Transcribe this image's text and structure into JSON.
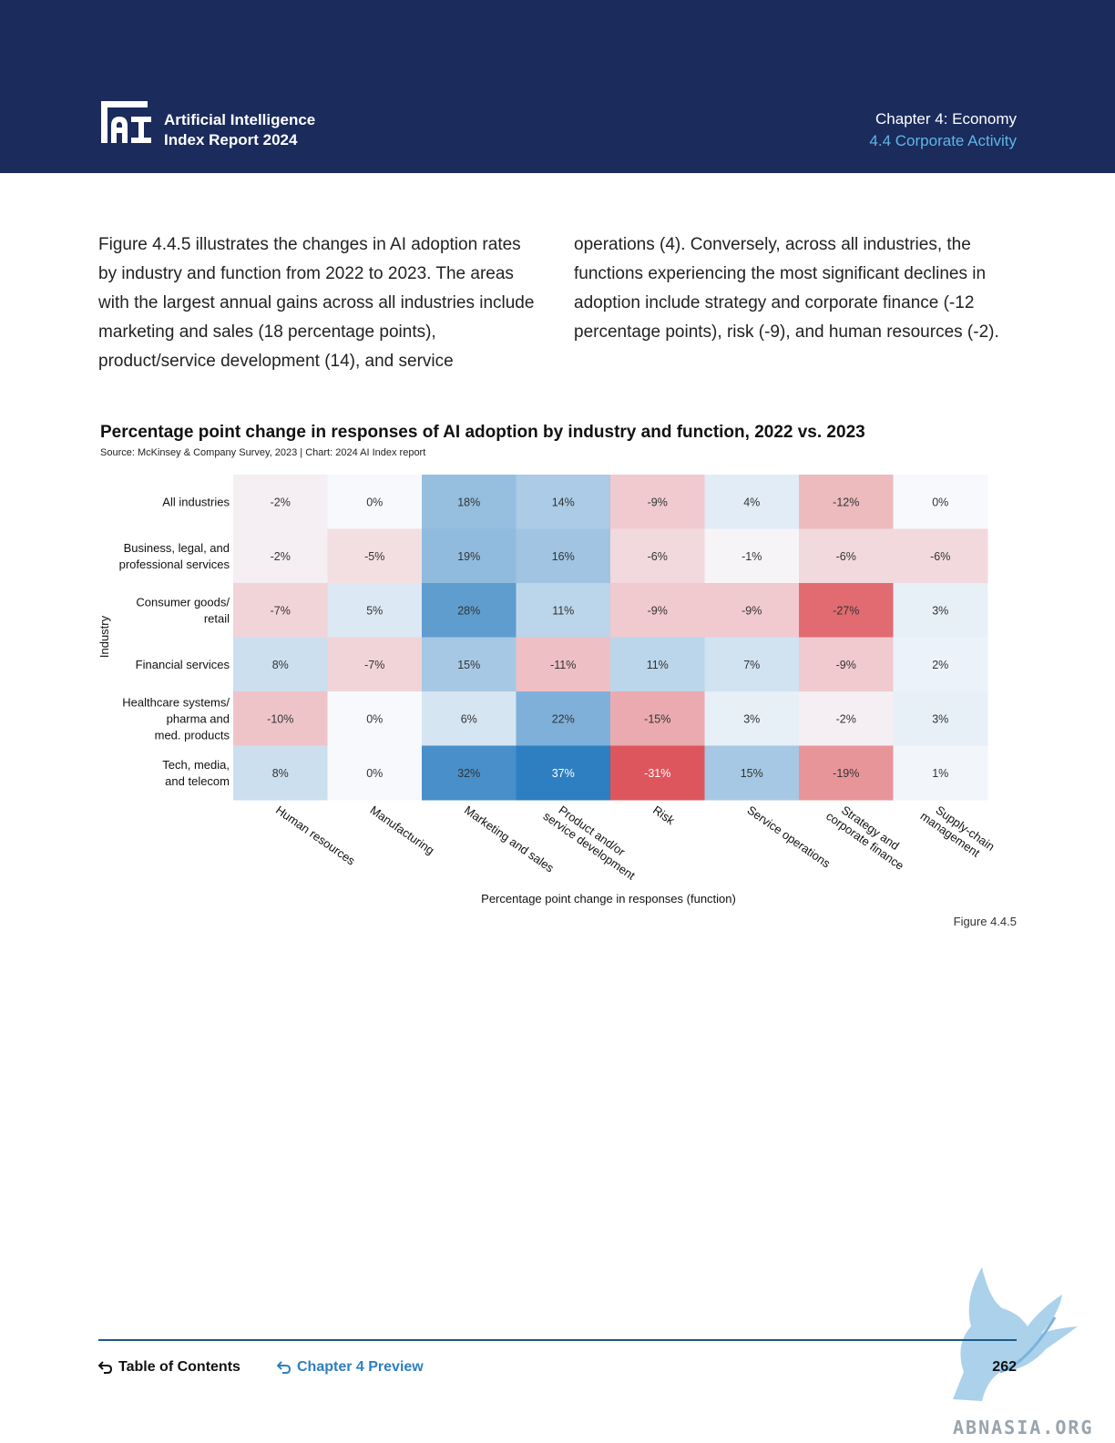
{
  "header": {
    "logo_line1": "Artificial Intelligence",
    "logo_line2": "Index Report 2024",
    "chapter": "Chapter 4: Economy",
    "section": "4.4 Corporate Activity"
  },
  "body": {
    "left": "Figure 4.4.5 illustrates the changes in AI adoption rates by industry and function from 2022 to 2023. The areas with the largest annual gains across all industries include marketing and sales (18 percentage points), product/service development (14), and service",
    "right": "operations (4). Conversely, across all industries, the functions experiencing the most significant declines in adoption include strategy and corporate finance (-12 percentage points), risk (-9), and human resources (-2)."
  },
  "chart_data": {
    "type": "heatmap",
    "title": "Percentage point change in responses of AI adoption by industry and function, 2022 vs. 2023",
    "subtitle": "Source: McKinsey & Company Survey, 2023 | Chart: 2024 AI Index report",
    "xlabel": "Percentage point change in responses (function)",
    "ylabel": "Industry",
    "rows": [
      [
        "All industries"
      ],
      [
        "Business, legal, and",
        "professional services"
      ],
      [
        "Consumer goods/",
        "retail"
      ],
      [
        "Financial services"
      ],
      [
        "Healthcare systems/",
        "pharma and",
        "med. products"
      ],
      [
        "Tech, media,",
        "and telecom"
      ]
    ],
    "columns": [
      [
        "Human resources"
      ],
      [
        "Manufacturing"
      ],
      [
        "Marketing and sales"
      ],
      [
        "Product and/or",
        "service development"
      ],
      [
        "Risk"
      ],
      [
        "Service operations"
      ],
      [
        "Strategy and",
        "corporate finance"
      ],
      [
        "Supply-chain",
        "management"
      ]
    ],
    "values": [
      [
        -2,
        0,
        18,
        14,
        -9,
        4,
        -12,
        0
      ],
      [
        -2,
        -5,
        19,
        16,
        -6,
        -1,
        -6,
        -6
      ],
      [
        -7,
        5,
        28,
        11,
        -9,
        -9,
        -27,
        3
      ],
      [
        8,
        -7,
        15,
        -11,
        11,
        7,
        -9,
        2
      ],
      [
        -10,
        0,
        6,
        22,
        -15,
        3,
        -2,
        3
      ],
      [
        8,
        0,
        32,
        37,
        -31,
        15,
        -19,
        1
      ]
    ],
    "unit": "%",
    "colors": {
      "positive": "#2e7fc1",
      "negative": "#d9363e",
      "neutral": "#f7f9fc"
    }
  },
  "figure_label": "Figure 4.4.5",
  "footer": {
    "toc": "Table of Contents",
    "chapter_preview": "Chapter 4 Preview",
    "page": "262"
  },
  "watermark": "ABNASIA.ORG"
}
